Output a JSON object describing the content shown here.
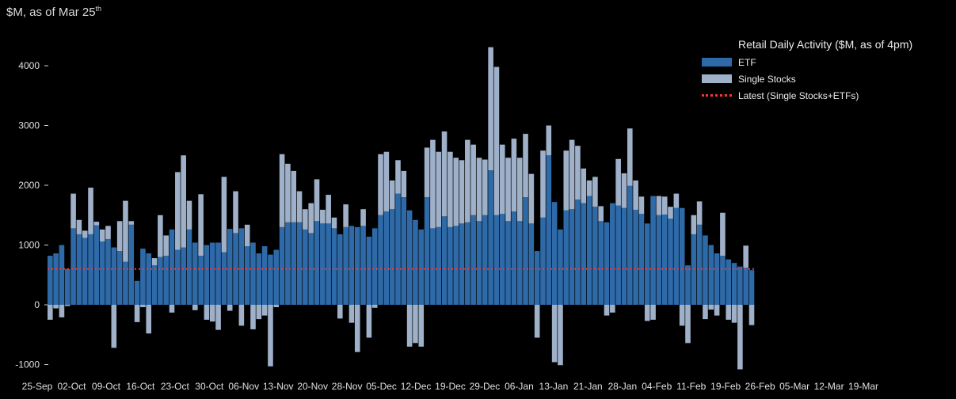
{
  "header": {
    "unit_label": "$M, as of Mar 25",
    "unit_suffix": "th"
  },
  "legend": {
    "title": "Retail Daily Activity ($M, as of 4pm)",
    "items": [
      {
        "label": "ETF",
        "color": "#2e6aa8"
      },
      {
        "label": "Single Stocks",
        "color": "#9fb0c9"
      },
      {
        "label": "Latest (Single Stocks+ETFs)",
        "color": "#ff3333"
      }
    ]
  },
  "chart_data": {
    "type": "bar",
    "stacked": true,
    "ylim": [
      -1000,
      4200
    ],
    "yticks": [
      -1000,
      0,
      1000,
      2000,
      3000,
      4000
    ],
    "x_tick_labels": [
      "25-Sep",
      "02-Oct",
      "09-Oct",
      "16-Oct",
      "23-Oct",
      "30-Oct",
      "06-Nov",
      "13-Nov",
      "20-Nov",
      "28-Nov",
      "05-Dec",
      "12-Dec",
      "19-Dec",
      "29-Dec",
      "06-Jan",
      "13-Jan",
      "21-Jan",
      "28-Jan",
      "04-Feb",
      "11-Feb",
      "19-Feb",
      "26-Feb",
      "05-Mar",
      "12-Mar",
      "19-Mar"
    ],
    "series": [
      {
        "name": "ETF",
        "values": [
          820,
          860,
          1000,
          600,
          1280,
          1180,
          1120,
          1180,
          1330,
          1060,
          1100,
          960,
          900,
          720,
          1340,
          400,
          940,
          860,
          660,
          800,
          820,
          1260,
          920,
          960,
          1260,
          1040,
          820,
          1000,
          1040,
          1040,
          880,
          1270,
          1200,
          1280,
          980,
          1040,
          860,
          980,
          840,
          920,
          1300,
          1380,
          1380,
          1380,
          1260,
          1200,
          1400,
          1360,
          1360,
          1280,
          1180,
          1300,
          1320,
          1300,
          1320,
          1140,
          1280,
          1500,
          1560,
          1600,
          1860,
          1800,
          1580,
          1420,
          1260,
          1800,
          1280,
          1300,
          1480,
          1300,
          1320,
          1360,
          1380,
          1500,
          1400,
          1500,
          2250,
          1500,
          1520,
          1400,
          1560,
          1400,
          1800,
          1360,
          900,
          1460,
          2500,
          1720,
          1260,
          1580,
          1600,
          1760,
          1700,
          1820,
          1640,
          1400,
          1380,
          1700,
          1660,
          1620,
          1990,
          1590,
          1520,
          1360,
          1820,
          1500,
          1510,
          1440,
          1620,
          1620,
          660,
          1180,
          1340,
          1160,
          1000,
          860,
          820,
          760,
          700,
          640,
          620,
          580
        ]
      },
      {
        "name": "Single Stocks",
        "values": [
          -250,
          -60,
          -210,
          -20,
          580,
          240,
          120,
          780,
          60,
          200,
          220,
          -720,
          500,
          1020,
          60,
          -290,
          -40,
          -480,
          120,
          700,
          340,
          -130,
          1300,
          1540,
          480,
          -90,
          1030,
          -250,
          -280,
          -420,
          1260,
          -100,
          700,
          -350,
          360,
          -410,
          -240,
          -180,
          -1030,
          -40,
          1220,
          980,
          860,
          520,
          340,
          500,
          700,
          230,
          480,
          180,
          -230,
          380,
          -300,
          -790,
          280,
          -550,
          -50,
          1020,
          1000,
          480,
          560,
          440,
          -700,
          -640,
          -700,
          830,
          1480,
          1260,
          1420,
          1260,
          1140,
          1060,
          1380,
          1180,
          1060,
          930,
          2060,
          2480,
          1160,
          1060,
          1220,
          1060,
          1060,
          830,
          -550,
          1120,
          500,
          -960,
          -1010,
          1000,
          1160,
          900,
          580,
          260,
          500,
          250,
          -180,
          -130,
          780,
          580,
          960,
          490,
          290,
          -270,
          -250,
          320,
          300,
          200,
          240,
          -350,
          -640,
          320,
          390,
          -240,
          -80,
          -180,
          720,
          -250,
          -300,
          -1080,
          370,
          -340
        ]
      }
    ],
    "latest_line": 600
  }
}
